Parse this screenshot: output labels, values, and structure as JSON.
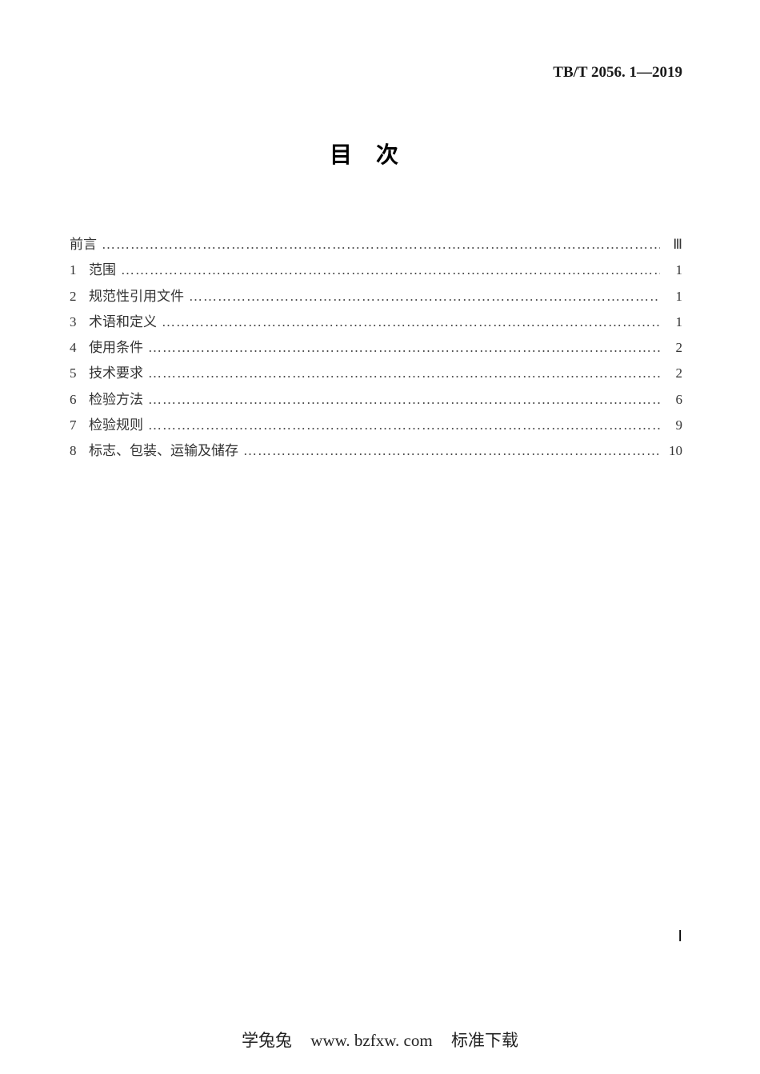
{
  "header": {
    "code": "TB/T 2056. 1—2019"
  },
  "title": "目次",
  "toc": [
    {
      "num": "",
      "label": "前言",
      "page": "Ⅲ"
    },
    {
      "num": "1",
      "label": "范围",
      "page": "1"
    },
    {
      "num": "2",
      "label": "规范性引用文件",
      "page": "1"
    },
    {
      "num": "3",
      "label": "术语和定义",
      "page": "1"
    },
    {
      "num": "4",
      "label": "使用条件",
      "page": "2"
    },
    {
      "num": "5",
      "label": "技术要求",
      "page": "2"
    },
    {
      "num": "6",
      "label": "检验方法",
      "page": "6"
    },
    {
      "num": "7",
      "label": "检验规则",
      "page": "9"
    },
    {
      "num": "8",
      "label": "标志、包装、运输及储存",
      "page": "10"
    }
  ],
  "page_number": "Ⅰ",
  "footer": {
    "site": "学兔兔",
    "url": "www. bzfxw. com",
    "tag": "标准下载"
  }
}
